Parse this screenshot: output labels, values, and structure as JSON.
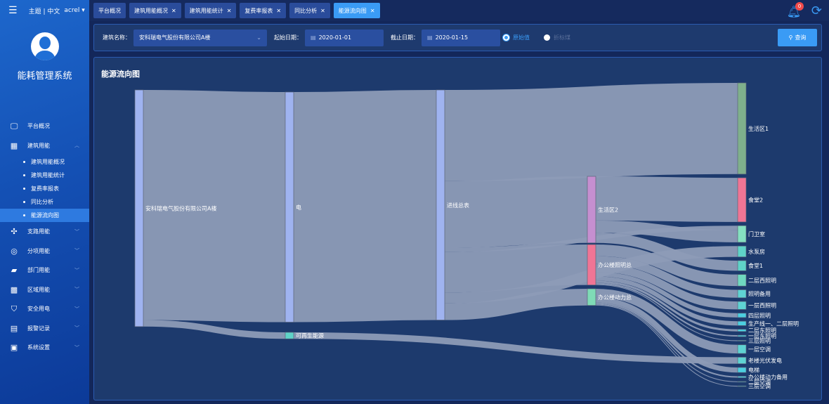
{
  "topbar": {
    "theme": "主题",
    "lang": "中文",
    "user": "acrel",
    "notifications": "0",
    "tabs": [
      {
        "label": "平台概况",
        "closable": false
      },
      {
        "label": "建筑用能概况",
        "closable": true
      },
      {
        "label": "建筑用能统计",
        "closable": true
      },
      {
        "label": "复费率报表",
        "closable": true
      },
      {
        "label": "同比分析",
        "closable": true
      },
      {
        "label": "能源流向图",
        "closable": true,
        "active": true
      }
    ]
  },
  "sidebar": {
    "title": "能耗管理系统",
    "items": [
      {
        "label": "平台概况",
        "icon": "monitor-icon"
      },
      {
        "label": "建筑用能",
        "icon": "building-icon",
        "expanded": true
      },
      {
        "label": "支路用能",
        "icon": "network-icon"
      },
      {
        "label": "分项用能",
        "icon": "gauge-icon"
      },
      {
        "label": "部门用能",
        "icon": "folder-icon"
      },
      {
        "label": "区域用能",
        "icon": "grid-building-icon"
      },
      {
        "label": "安全用电",
        "icon": "shield-icon"
      },
      {
        "label": "报警记录",
        "icon": "document-icon"
      },
      {
        "label": "系统设置",
        "icon": "settings-icon"
      }
    ],
    "subitems": [
      "建筑用能概况",
      "建筑用能统计",
      "复费率报表",
      "同比分析",
      "能源流向图"
    ],
    "active_sub": "能源流向图"
  },
  "filter": {
    "building_label": "建筑名称：",
    "building_value": "安科瑞电气股份有限公司A楼",
    "start_label": "起始日期：",
    "start_value": "2020-01-01",
    "end_label": "截止日期：",
    "end_value": "2020-01-15",
    "radio_raw": "原始值",
    "radio_coal": "折标煤",
    "radio_selected": "原始值",
    "query": "查询"
  },
  "panel": {
    "title": "能源流向图"
  },
  "colors": {
    "link": "#8d9bb7",
    "node_default": "#9fb3f0",
    "leaf": "#5fd3d3"
  },
  "chart_data": {
    "type": "sankey",
    "nodes": [
      {
        "name": "安科瑞电气股份有限公司A楼",
        "color": "#9fb3f0"
      },
      {
        "name": "电",
        "color": "#9fb3f0"
      },
      {
        "name": "可再生能源",
        "color": "#5fd3c8"
      },
      {
        "name": "进线总表",
        "color": "#9fb3f0"
      },
      {
        "name": "生活区2",
        "color": "#c58fd0"
      },
      {
        "name": "办公楼照明总",
        "color": "#f07595"
      },
      {
        "name": "办公楼动力总",
        "color": "#7fdbb6"
      },
      {
        "name": "生活区1",
        "color": "#7fb08c"
      },
      {
        "name": "食堂2",
        "color": "#f07595"
      },
      {
        "name": "门卫室",
        "color": "#85e0c0"
      },
      {
        "name": "水泵房",
        "color": "#5fd3c8"
      },
      {
        "name": "食堂1",
        "color": "#5fd3c8"
      },
      {
        "name": "二层西照明",
        "color": "#6fd8c0"
      },
      {
        "name": "照明备用",
        "color": "#5fd3d3"
      },
      {
        "name": "一层西照明",
        "color": "#5fd3d3"
      },
      {
        "name": "四层照明",
        "color": "#4ccfe0"
      },
      {
        "name": "生产线一、二层照明",
        "color": "#4ccfe0"
      },
      {
        "name": "二层东照明",
        "color": "#4ccfe0"
      },
      {
        "name": "一层东照明",
        "color": "#4ccfe0"
      },
      {
        "name": "三层照明",
        "color": "#4ccfe0"
      },
      {
        "name": "一层空调",
        "color": "#5fd3d3"
      },
      {
        "name": "老楼光伏发电",
        "color": "#5fd3d3"
      },
      {
        "name": "电梯",
        "color": "#4ccfe0"
      },
      {
        "name": "办公楼动力备用",
        "color": "#4ccfe0"
      },
      {
        "name": "二层空调",
        "color": "#4ccfe0"
      },
      {
        "name": "三层空调",
        "color": "#4ccfe0"
      }
    ],
    "links": [
      [
        "安科瑞电气股份有限公司A楼",
        "电",
        318
      ],
      [
        "安科瑞电气股份有限公司A楼",
        "可再生能源",
        9
      ],
      [
        "电",
        "进线总表",
        318
      ],
      [
        "可再生能源",
        "老楼光伏发电",
        9
      ],
      [
        "进线总表",
        "生活区1",
        126
      ],
      [
        "进线总表",
        "生活区2",
        92
      ],
      [
        "进线总表",
        "门卫室",
        6
      ],
      [
        "进线总表",
        "水泵房",
        15
      ],
      [
        "进线总表",
        "办公楼照明总",
        56
      ],
      [
        "进线总表",
        "办公楼动力总",
        23
      ],
      [
        "生活区2",
        "食堂2",
        61
      ],
      [
        "生活区2",
        "门卫室",
        17
      ],
      [
        "生活区2",
        "食堂1",
        14
      ],
      [
        "办公楼照明总",
        "二层西照明",
        16
      ],
      [
        "办公楼照明总",
        "照明备用",
        11
      ],
      [
        "办公楼照明总",
        "一层西照明",
        11
      ],
      [
        "办公楼照明总",
        "四层照明",
        6
      ],
      [
        "办公楼照明总",
        "生产线一、二层照明",
        6
      ],
      [
        "办公楼照明总",
        "二层东照明",
        3
      ],
      [
        "办公楼照明总",
        "一层东照明",
        2
      ],
      [
        "办公楼照明总",
        "三层照明",
        1
      ],
      [
        "办公楼动力总",
        "一层空调",
        12
      ],
      [
        "办公楼动力总",
        "电梯",
        7
      ],
      [
        "办公楼动力总",
        "办公楼动力备用",
        2
      ],
      [
        "办公楼动力总",
        "二层空调",
        1
      ],
      [
        "办公楼动力总",
        "三层空调",
        1
      ]
    ]
  }
}
